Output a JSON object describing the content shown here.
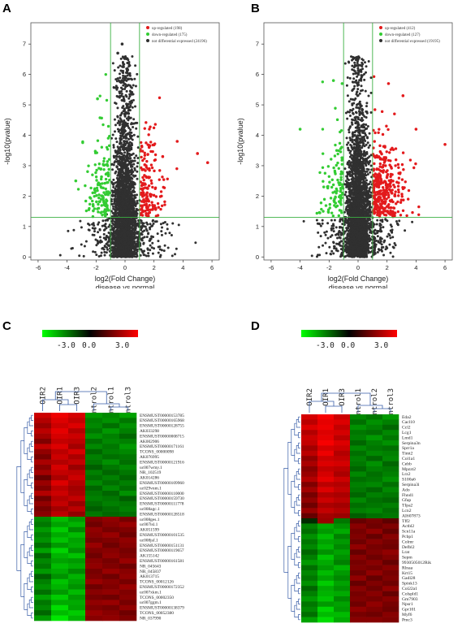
{
  "panels": {
    "A": "A",
    "B": "B",
    "C": "C",
    "D": "D"
  },
  "chart_data": [
    {
      "type": "scatter",
      "panel": "A",
      "xlabel": "log2(Fold Change)",
      "xlabel2": "disease vs normal",
      "ylabel": "-log10(pvalue)",
      "xlim": [
        -6.5,
        6.5
      ],
      "ylim": [
        -0.1,
        7.7
      ],
      "xticks": [
        -6,
        -4,
        -2,
        0,
        2,
        4,
        6
      ],
      "yticks": [
        0,
        1,
        2,
        3,
        4,
        5,
        6,
        7
      ],
      "thresholds": {
        "x": [
          -1,
          1
        ],
        "y": 1.3
      },
      "legend_position": "top-right",
      "series": [
        {
          "name": "up-regulated (198)",
          "color": "#e31a1c",
          "count": 198
        },
        {
          "name": "down-regulated (175)",
          "color": "#33cc33",
          "count": 175
        },
        {
          "name": "not differential expressed (24196)",
          "color": "#303030",
          "count": 24196
        }
      ],
      "highlight_points": [
        [
          5.0,
          3.4
        ],
        [
          5.7,
          3.1
        ],
        [
          3.6,
          3.8
        ],
        [
          2.6,
          3.3
        ],
        [
          -1.9,
          5.2
        ],
        [
          -3.4,
          2.5
        ],
        [
          -0.5,
          6.7
        ],
        [
          -0.2,
          7.0
        ]
      ]
    },
    {
      "type": "scatter",
      "panel": "B",
      "xlabel": "log2(Fold Change)",
      "xlabel2": "disease vs normal",
      "ylabel": "-log10(pvalue)",
      "xlim": [
        -6.5,
        6.5
      ],
      "ylim": [
        -0.1,
        7.7
      ],
      "xticks": [
        -6,
        -4,
        -2,
        0,
        2,
        4,
        6
      ],
      "yticks": [
        0,
        1,
        2,
        3,
        4,
        5,
        6,
        7
      ],
      "thresholds": {
        "x": [
          -1,
          1
        ],
        "y": 1.3
      },
      "legend_position": "top-right",
      "series": [
        {
          "name": "up-regulated (412)",
          "color": "#e31a1c",
          "count": 412
        },
        {
          "name": "down-regulated (127)",
          "color": "#33cc33",
          "count": 127
        },
        {
          "name": "not differential expressed (19195)",
          "color": "#303030",
          "count": 19195
        }
      ],
      "highlight_points": [
        [
          6.0,
          3.7
        ],
        [
          4.0,
          4.2
        ],
        [
          3.1,
          5.3
        ],
        [
          2.1,
          5.7
        ],
        [
          -4.0,
          4.2
        ],
        [
          -1.7,
          5.8
        ],
        [
          -1.1,
          5.7
        ],
        [
          0.0,
          6.5
        ],
        [
          -0.2,
          6.3
        ]
      ]
    },
    {
      "type": "heatmap",
      "panel": "C",
      "scale": {
        "min": "-3.0",
        "mid": "0.0",
        "max": "3.0"
      },
      "columns": [
        "OIR2",
        "OIR1",
        "OIR3",
        "Control2",
        "Control1",
        "Control3"
      ],
      "rows": [
        "ENSMUST00000153785",
        "ENSMUST00000165968",
        "ENSMUST00000128755",
        "AK033298",
        "ENSMUST00000008715",
        "AK002906",
        "ENSMUST00000171161",
        "TCONS_00000098",
        "AK076995",
        "ENSMUST00000121916",
        "uc007wmy.1",
        "NR_102519",
        "AK014286",
        "ENSMUST00000109960",
        "uc029vnm.1",
        "ENSMUST00000110000",
        "ENSMUST00000159730",
        "ENSMUST00000111778",
        "uc008agc.1",
        "ENSMUST00000128518",
        "uc008ges.1",
        "uc007lsl.1",
        "AK051599",
        "ENSMUST00000101535",
        "uc008jsf.1",
        "ENSMUST00000151131",
        "ENSMUST00000119657",
        "AK155142",
        "ENSMUST00000161581",
        "NR_045643",
        "NR_045837",
        "AK013715",
        "TCONS_00012126",
        "ENSMUST00000172352",
        "uc007xkm.1",
        "TCONS_00002350",
        "uc007ggm.1",
        "ENSMUST00000138379",
        "TCONS_00052380",
        "NR_037990"
      ],
      "values": [
        [
          2.4,
          2.8,
          2.5,
          -1.8,
          -1.6,
          -1.9
        ],
        [
          2.1,
          2.6,
          2.3,
          -1.5,
          -1.7,
          -1.4
        ],
        [
          1.8,
          2.4,
          2.6,
          -1.6,
          -1.3,
          -1.7
        ],
        [
          2.2,
          2.7,
          2.1,
          -1.4,
          -1.8,
          -1.5
        ],
        [
          1.9,
          2.5,
          2.4,
          -1.7,
          -1.5,
          -1.2
        ],
        [
          1.5,
          2.3,
          2.2,
          -1.3,
          -1.6,
          -1.5
        ],
        [
          2.3,
          2.6,
          1.9,
          -1.6,
          -1.4,
          -1.8
        ],
        [
          1.7,
          2.2,
          2.5,
          -1.2,
          -1.5,
          -1.6
        ],
        [
          1.4,
          2.4,
          2.0,
          -1.5,
          -1.3,
          -1.4
        ],
        [
          2.0,
          2.1,
          2.3,
          -1.4,
          -1.7,
          -1.3
        ],
        [
          1.6,
          2.5,
          1.8,
          -1.1,
          -1.4,
          -1.6
        ],
        [
          1.9,
          2.3,
          2.2,
          -1.5,
          -1.2,
          -1.4
        ],
        [
          1.2,
          2.0,
          2.4,
          -1.3,
          -1.5,
          -1.2
        ],
        [
          1.8,
          2.6,
          2.1,
          -1.6,
          -1.3,
          -1.5
        ],
        [
          1.5,
          2.2,
          1.9,
          -1.2,
          -1.6,
          -1.3
        ],
        [
          2.1,
          2.4,
          2.0,
          -1.4,
          -1.2,
          -1.7
        ],
        [
          1.3,
          2.1,
          2.3,
          -1.5,
          -1.4,
          -1.1
        ],
        [
          1.7,
          2.3,
          1.8,
          -1.3,
          -1.5,
          -1.4
        ],
        [
          1.4,
          1.9,
          2.2,
          -1.1,
          -1.3,
          -1.5
        ],
        [
          1.6,
          2.2,
          1.7,
          -1.4,
          -1.2,
          -1.3
        ],
        [
          -1.6,
          -2.2,
          -1.8,
          1.5,
          1.7,
          1.4
        ],
        [
          -1.4,
          -1.9,
          -2.1,
          1.3,
          1.6,
          1.8
        ],
        [
          -1.8,
          -2.4,
          -1.6,
          1.7,
          1.4,
          1.5
        ],
        [
          -1.5,
          -2.0,
          -2.2,
          1.6,
          1.8,
          1.3
        ],
        [
          -1.7,
          -2.3,
          -1.9,
          1.4,
          1.5,
          1.7
        ],
        [
          -1.3,
          -1.8,
          -2.0,
          1.8,
          1.3,
          1.6
        ],
        [
          -1.9,
          -2.5,
          -1.7,
          1.5,
          1.6,
          1.4
        ],
        [
          -1.2,
          -2.1,
          -2.3,
          1.3,
          1.7,
          1.5
        ],
        [
          -1.6,
          -1.9,
          -1.8,
          1.6,
          1.4,
          1.8
        ],
        [
          -1.4,
          -2.2,
          -2.0,
          1.7,
          1.5,
          1.3
        ],
        [
          -1.8,
          -2.0,
          -1.6,
          1.4,
          1.8,
          1.6
        ],
        [
          -1.1,
          -1.7,
          -2.1,
          1.5,
          1.3,
          1.7
        ],
        [
          -1.5,
          -2.3,
          -1.9,
          1.8,
          1.6,
          1.4
        ],
        [
          -1.7,
          -2.1,
          -1.7,
          1.3,
          1.5,
          1.8
        ],
        [
          -1.3,
          -1.8,
          -2.2,
          1.6,
          1.7,
          1.5
        ],
        [
          -1.9,
          -2.4,
          -1.8,
          1.4,
          1.3,
          1.6
        ],
        [
          -1.4,
          -2.0,
          -2.0,
          1.7,
          1.8,
          1.4
        ],
        [
          -1.6,
          -2.6,
          -1.9,
          1.5,
          1.4,
          1.7
        ],
        [
          -1.2,
          -2.2,
          -2.4,
          1.8,
          1.6,
          1.3
        ],
        [
          -1.8,
          -2.7,
          -2.1,
          1.6,
          1.7,
          1.5
        ]
      ]
    },
    {
      "type": "heatmap",
      "panel": "D",
      "scale": {
        "min": "-3.0",
        "mid": "0.0",
        "max": "3.0"
      },
      "columns": [
        "OIR2",
        "OIR1",
        "OIR3",
        "Control1",
        "Control2",
        "Control3"
      ],
      "rows": [
        "Eda2",
        "Cacl10",
        "Ccl2",
        "Lcg1",
        "Lmd1",
        "Serpina3n",
        "Sprr1a",
        "Timt2",
        "Col1a1",
        "Cebb",
        "Mpzzt2",
        "Lrz2",
        "S100a6",
        "Serpina3i",
        "Ado",
        "Fhnd1",
        "Gfap",
        "Tfpa2",
        "Lcn2",
        "AI607873",
        "Tff2",
        "Actbl2",
        "Scn11a",
        "Pcbp1",
        "Colmr",
        "Defbl2",
        "Lrat",
        "Sepm",
        "9930505012Rik",
        "Rlnaa",
        "Krt15",
        "Gadl28",
        "Spink13",
        "Col22a1",
        "Colspld1",
        "Gm7903",
        "Npsr1",
        "Gpr101",
        "Myf6",
        "Pmc3"
      ],
      "values": [
        [
          2.5,
          2.9,
          2.4,
          -1.6,
          -1.4,
          -1.8
        ],
        [
          2.2,
          2.7,
          2.6,
          -1.3,
          -1.7,
          -1.5
        ],
        [
          2.6,
          2.8,
          2.3,
          -1.7,
          -1.5,
          -1.2
        ],
        [
          2.1,
          2.6,
          2.5,
          -1.4,
          -1.3,
          -1.6
        ],
        [
          2.4,
          2.7,
          2.2,
          -1.5,
          -1.8,
          -1.4
        ],
        [
          2.3,
          2.9,
          2.6,
          -1.2,
          -1.5,
          -1.7
        ],
        [
          1.9,
          2.5,
          2.4,
          -1.6,
          -1.4,
          -1.3
        ],
        [
          2.2,
          2.8,
          2.1,
          -1.3,
          -1.6,
          -1.5
        ],
        [
          1.7,
          2.4,
          2.3,
          -1.5,
          -1.2,
          -1.6
        ],
        [
          2.0,
          2.6,
          2.5,
          -1.4,
          -1.7,
          -1.2
        ],
        [
          1.6,
          2.3,
          2.2,
          -1.2,
          -1.5,
          -1.4
        ],
        [
          1.8,
          2.5,
          2.0,
          -1.6,
          -1.3,
          -1.5
        ],
        [
          2.1,
          2.7,
          2.4,
          -1.3,
          -1.4,
          -1.7
        ],
        [
          1.5,
          2.2,
          2.1,
          -1.5,
          -1.6,
          -1.3
        ],
        [
          1.9,
          2.6,
          2.3,
          -1.4,
          -1.2,
          -1.6
        ],
        [
          1.4,
          2.1,
          2.0,
          -1.2,
          -1.5,
          -1.4
        ],
        [
          1.7,
          2.4,
          2.2,
          -1.6,
          -1.3,
          -1.2
        ],
        [
          1.3,
          2.0,
          1.9,
          -1.3,
          -1.4,
          -1.5
        ],
        [
          1.8,
          2.3,
          2.1,
          -1.5,
          -1.6,
          -1.3
        ],
        [
          1.2,
          1.9,
          1.8,
          -1.1,
          -1.3,
          -1.4
        ],
        [
          -0.5,
          1.8,
          -1.4,
          1.2,
          1.4,
          1.1
        ],
        [
          -1.5,
          -2.0,
          -1.7,
          1.6,
          1.3,
          1.5
        ],
        [
          -1.3,
          -1.8,
          -2.0,
          1.4,
          1.7,
          1.2
        ],
        [
          -1.7,
          -2.2,
          -1.5,
          1.5,
          1.2,
          1.6
        ],
        [
          -1.4,
          -1.9,
          -1.8,
          1.3,
          1.6,
          1.4
        ],
        [
          -1.6,
          -2.1,
          -1.6,
          1.7,
          1.4,
          1.3
        ],
        [
          -1.2,
          -1.7,
          -1.9,
          1.2,
          1.5,
          1.7
        ],
        [
          -1.5,
          -2.3,
          -1.7,
          1.6,
          1.3,
          1.5
        ],
        [
          -1.8,
          -2.0,
          -1.5,
          1.4,
          1.6,
          1.2
        ],
        [
          -1.3,
          -1.8,
          -2.1,
          1.5,
          1.4,
          1.6
        ],
        [
          -1.6,
          -2.2,
          -1.8,
          1.3,
          1.7,
          1.4
        ],
        [
          -1.4,
          -1.9,
          -1.6,
          1.7,
          1.2,
          1.5
        ],
        [
          -1.7,
          -2.4,
          -1.9,
          1.2,
          1.5,
          1.3
        ],
        [
          -1.2,
          -2.0,
          -1.7,
          1.6,
          1.3,
          1.7
        ],
        [
          -1.5,
          -2.1,
          -2.0,
          1.4,
          1.6,
          1.2
        ],
        [
          -1.8,
          -2.3,
          -1.6,
          1.5,
          1.4,
          1.6
        ],
        [
          -1.4,
          -1.8,
          -1.9,
          1.3,
          1.7,
          1.4
        ],
        [
          -1.6,
          -2.5,
          -1.8,
          1.7,
          1.5,
          1.3
        ],
        [
          -1.3,
          -2.2,
          -2.2,
          1.4,
          1.3,
          1.6
        ],
        [
          -1.9,
          -2.6,
          -2.0,
          1.6,
          1.6,
          1.5
        ]
      ]
    }
  ]
}
